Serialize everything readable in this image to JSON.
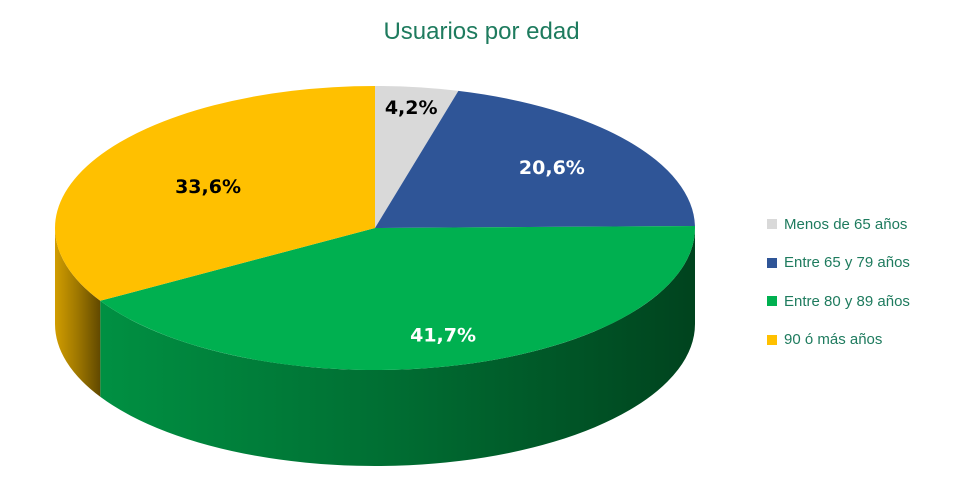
{
  "chart_data": {
    "type": "pie",
    "title": "Usuarios por edad",
    "slices": [
      {
        "name": "Menos de 65 años",
        "value": 4.2,
        "label": "4,2%",
        "color": "#d9d9d9",
        "label_color": "#000000"
      },
      {
        "name": "Entre 65 y 79 años",
        "value": 20.6,
        "label": "20,6%",
        "color": "#2f5597",
        "label_color": "#ffffff"
      },
      {
        "name": "Entre 80 y 89 años",
        "value": 41.7,
        "label": "41,7%",
        "color": "#00b050",
        "label_color": "#ffffff"
      },
      {
        "name": "90 ó más años",
        "value": 33.6,
        "label": "33,6%",
        "color": "#ffc000",
        "label_color": "#000000"
      }
    ],
    "legend_position": "right",
    "style": "3d"
  }
}
